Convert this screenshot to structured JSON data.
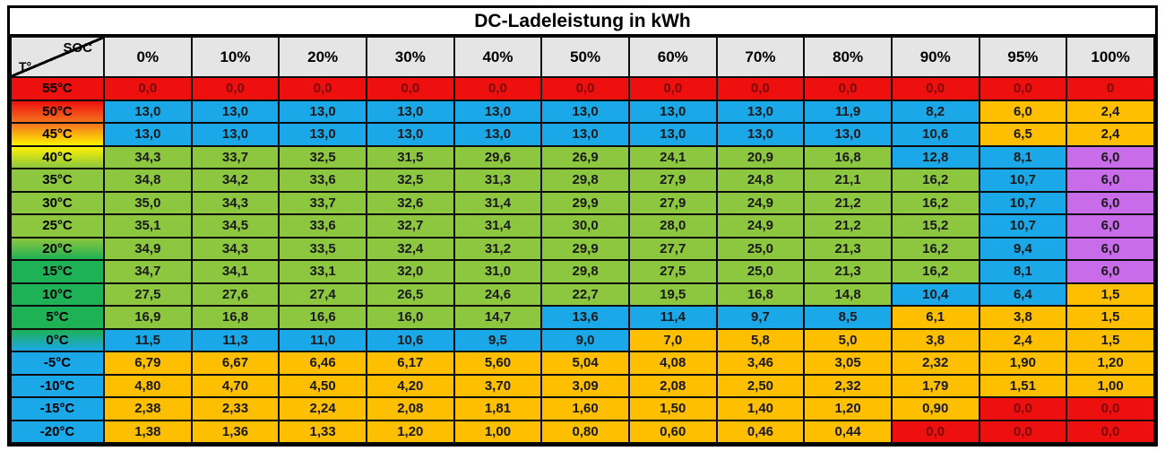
{
  "title": "DC-Ladeleistung in kWh",
  "colors": {
    "red": "#ee0f0f",
    "blue": "#1ba8e8",
    "green": "#8dc63f",
    "orange": "#fdbf00",
    "purple": "#c86cea",
    "dark_green": "#1eb155",
    "yellow": "#fdf200",
    "header_gray": "#e5e5e5",
    "red_cell_text": "#7a0a0a"
  },
  "chart_data": {
    "type": "heatmap",
    "title": "DC-Ladeleistung in kWh",
    "x_axis_label": "SOC",
    "y_axis_label": "T°",
    "unit": "kWh",
    "cell_color_key": {
      "r": "red",
      "b": "blue",
      "g": "green",
      "o": "orange",
      "p": "purple"
    },
    "columns": [
      "0%",
      "10%",
      "20%",
      "30%",
      "40%",
      "50%",
      "60%",
      "70%",
      "80%",
      "90%",
      "95%",
      "100%"
    ],
    "rows": [
      {
        "label": "55°C",
        "header_style": "red",
        "values": [
          "0,0",
          "0,0",
          "0,0",
          "0,0",
          "0,0",
          "0,0",
          "0,0",
          "0,0",
          "0,0",
          "0,0",
          "0,0",
          "0"
        ],
        "cell_colors": [
          "r",
          "r",
          "r",
          "r",
          "r",
          "r",
          "r",
          "r",
          "r",
          "r",
          "r",
          "r"
        ]
      },
      {
        "label": "50°C",
        "header_style": "red-orange",
        "values": [
          "13,0",
          "13,0",
          "13,0",
          "13,0",
          "13,0",
          "13,0",
          "13,0",
          "13,0",
          "11,9",
          "8,2",
          "6,0",
          "2,4"
        ],
        "cell_colors": [
          "b",
          "b",
          "b",
          "b",
          "b",
          "b",
          "b",
          "b",
          "b",
          "b",
          "o",
          "o"
        ]
      },
      {
        "label": "45°C",
        "header_style": "orange-yellow",
        "values": [
          "13,0",
          "13,0",
          "13,0",
          "13,0",
          "13,0",
          "13,0",
          "13,0",
          "13,0",
          "13,0",
          "10,6",
          "6,5",
          "2,4"
        ],
        "cell_colors": [
          "b",
          "b",
          "b",
          "b",
          "b",
          "b",
          "b",
          "b",
          "b",
          "b",
          "o",
          "o"
        ]
      },
      {
        "label": "40°C",
        "header_style": "yellow-green",
        "values": [
          "34,3",
          "33,7",
          "32,5",
          "31,5",
          "29,6",
          "26,9",
          "24,1",
          "20,9",
          "16,8",
          "12,8",
          "8,1",
          "6,0"
        ],
        "cell_colors": [
          "g",
          "g",
          "g",
          "g",
          "g",
          "g",
          "g",
          "g",
          "g",
          "b",
          "b",
          "p"
        ]
      },
      {
        "label": "35°C",
        "header_style": "light-green",
        "values": [
          "34,8",
          "34,2",
          "33,6",
          "32,5",
          "31,3",
          "29,8",
          "27,9",
          "24,8",
          "21,1",
          "16,2",
          "10,7",
          "6,0"
        ],
        "cell_colors": [
          "g",
          "g",
          "g",
          "g",
          "g",
          "g",
          "g",
          "g",
          "g",
          "g",
          "b",
          "p"
        ]
      },
      {
        "label": "30°C",
        "header_style": "light-green",
        "values": [
          "35,0",
          "34,3",
          "33,7",
          "32,6",
          "31,4",
          "29,9",
          "27,9",
          "24,9",
          "21,2",
          "16,2",
          "10,7",
          "6,0"
        ],
        "cell_colors": [
          "g",
          "g",
          "g",
          "g",
          "g",
          "g",
          "g",
          "g",
          "g",
          "g",
          "b",
          "p"
        ]
      },
      {
        "label": "25°C",
        "header_style": "light-green",
        "values": [
          "35,1",
          "34,5",
          "33,6",
          "32,7",
          "31,4",
          "30,0",
          "28,0",
          "24,9",
          "21,2",
          "15,2",
          "10,7",
          "6,0"
        ],
        "cell_colors": [
          "g",
          "g",
          "g",
          "g",
          "g",
          "g",
          "g",
          "g",
          "g",
          "g",
          "b",
          "p"
        ]
      },
      {
        "label": "20°C",
        "header_style": "lightgreen-green",
        "values": [
          "34,9",
          "34,3",
          "33,5",
          "32,4",
          "31,2",
          "29,9",
          "27,7",
          "25,0",
          "21,3",
          "16,2",
          "9,4",
          "6,0"
        ],
        "cell_colors": [
          "g",
          "g",
          "g",
          "g",
          "g",
          "g",
          "g",
          "g",
          "g",
          "g",
          "b",
          "p"
        ]
      },
      {
        "label": "15°C",
        "header_style": "green",
        "values": [
          "34,7",
          "34,1",
          "33,1",
          "32,0",
          "31,0",
          "29,8",
          "27,5",
          "25,0",
          "21,3",
          "16,2",
          "8,1",
          "6,0"
        ],
        "cell_colors": [
          "g",
          "g",
          "g",
          "g",
          "g",
          "g",
          "g",
          "g",
          "g",
          "g",
          "b",
          "p"
        ]
      },
      {
        "label": "10°C",
        "header_style": "green",
        "values": [
          "27,5",
          "27,6",
          "27,4",
          "26,5",
          "24,6",
          "22,7",
          "19,5",
          "16,8",
          "14,8",
          "10,4",
          "6,4",
          "1,5"
        ],
        "cell_colors": [
          "g",
          "g",
          "g",
          "g",
          "g",
          "g",
          "g",
          "g",
          "g",
          "b",
          "b",
          "o"
        ]
      },
      {
        "label": "5°C",
        "header_style": "green",
        "values": [
          "16,9",
          "16,8",
          "16,6",
          "16,0",
          "14,7",
          "13,6",
          "11,4",
          "9,7",
          "8,5",
          "6,1",
          "3,8",
          "1,5"
        ],
        "cell_colors": [
          "g",
          "g",
          "g",
          "g",
          "g",
          "b",
          "b",
          "b",
          "b",
          "o",
          "o",
          "o"
        ]
      },
      {
        "label": "0°C",
        "header_style": "green-blue",
        "values": [
          "11,5",
          "11,3",
          "11,0",
          "10,6",
          "9,5",
          "9,0",
          "7,0",
          "5,8",
          "5,0",
          "3,8",
          "2,4",
          "1,5"
        ],
        "cell_colors": [
          "b",
          "b",
          "b",
          "b",
          "b",
          "b",
          "o",
          "o",
          "o",
          "o",
          "o",
          "o"
        ]
      },
      {
        "label": "-5°C",
        "header_style": "blue",
        "values": [
          "6,79",
          "6,67",
          "6,46",
          "6,17",
          "5,60",
          "5,04",
          "4,08",
          "3,46",
          "3,05",
          "2,32",
          "1,90",
          "1,20"
        ],
        "cell_colors": [
          "o",
          "o",
          "o",
          "o",
          "o",
          "o",
          "o",
          "o",
          "o",
          "o",
          "o",
          "o"
        ]
      },
      {
        "label": "-10°C",
        "header_style": "blue",
        "values": [
          "4,80",
          "4,70",
          "4,50",
          "4,20",
          "3,70",
          "3,09",
          "2,08",
          "2,50",
          "2,32",
          "1,79",
          "1,51",
          "1,00"
        ],
        "cell_colors": [
          "o",
          "o",
          "o",
          "o",
          "o",
          "o",
          "o",
          "o",
          "o",
          "o",
          "o",
          "o"
        ]
      },
      {
        "label": "-15°C",
        "header_style": "blue",
        "values": [
          "2,38",
          "2,33",
          "2,24",
          "2,08",
          "1,81",
          "1,60",
          "1,50",
          "1,40",
          "1,20",
          "0,90",
          "0,0",
          "0,0"
        ],
        "cell_colors": [
          "o",
          "o",
          "o",
          "o",
          "o",
          "o",
          "o",
          "o",
          "o",
          "o",
          "r",
          "r"
        ]
      },
      {
        "label": "-20°C",
        "header_style": "blue",
        "values": [
          "1,38",
          "1,36",
          "1,33",
          "1,20",
          "1,00",
          "0,80",
          "0,60",
          "0,46",
          "0,44",
          "0,0",
          "0,0",
          "0,0"
        ],
        "cell_colors": [
          "o",
          "o",
          "o",
          "o",
          "o",
          "o",
          "o",
          "o",
          "o",
          "r",
          "r",
          "r"
        ]
      }
    ]
  }
}
